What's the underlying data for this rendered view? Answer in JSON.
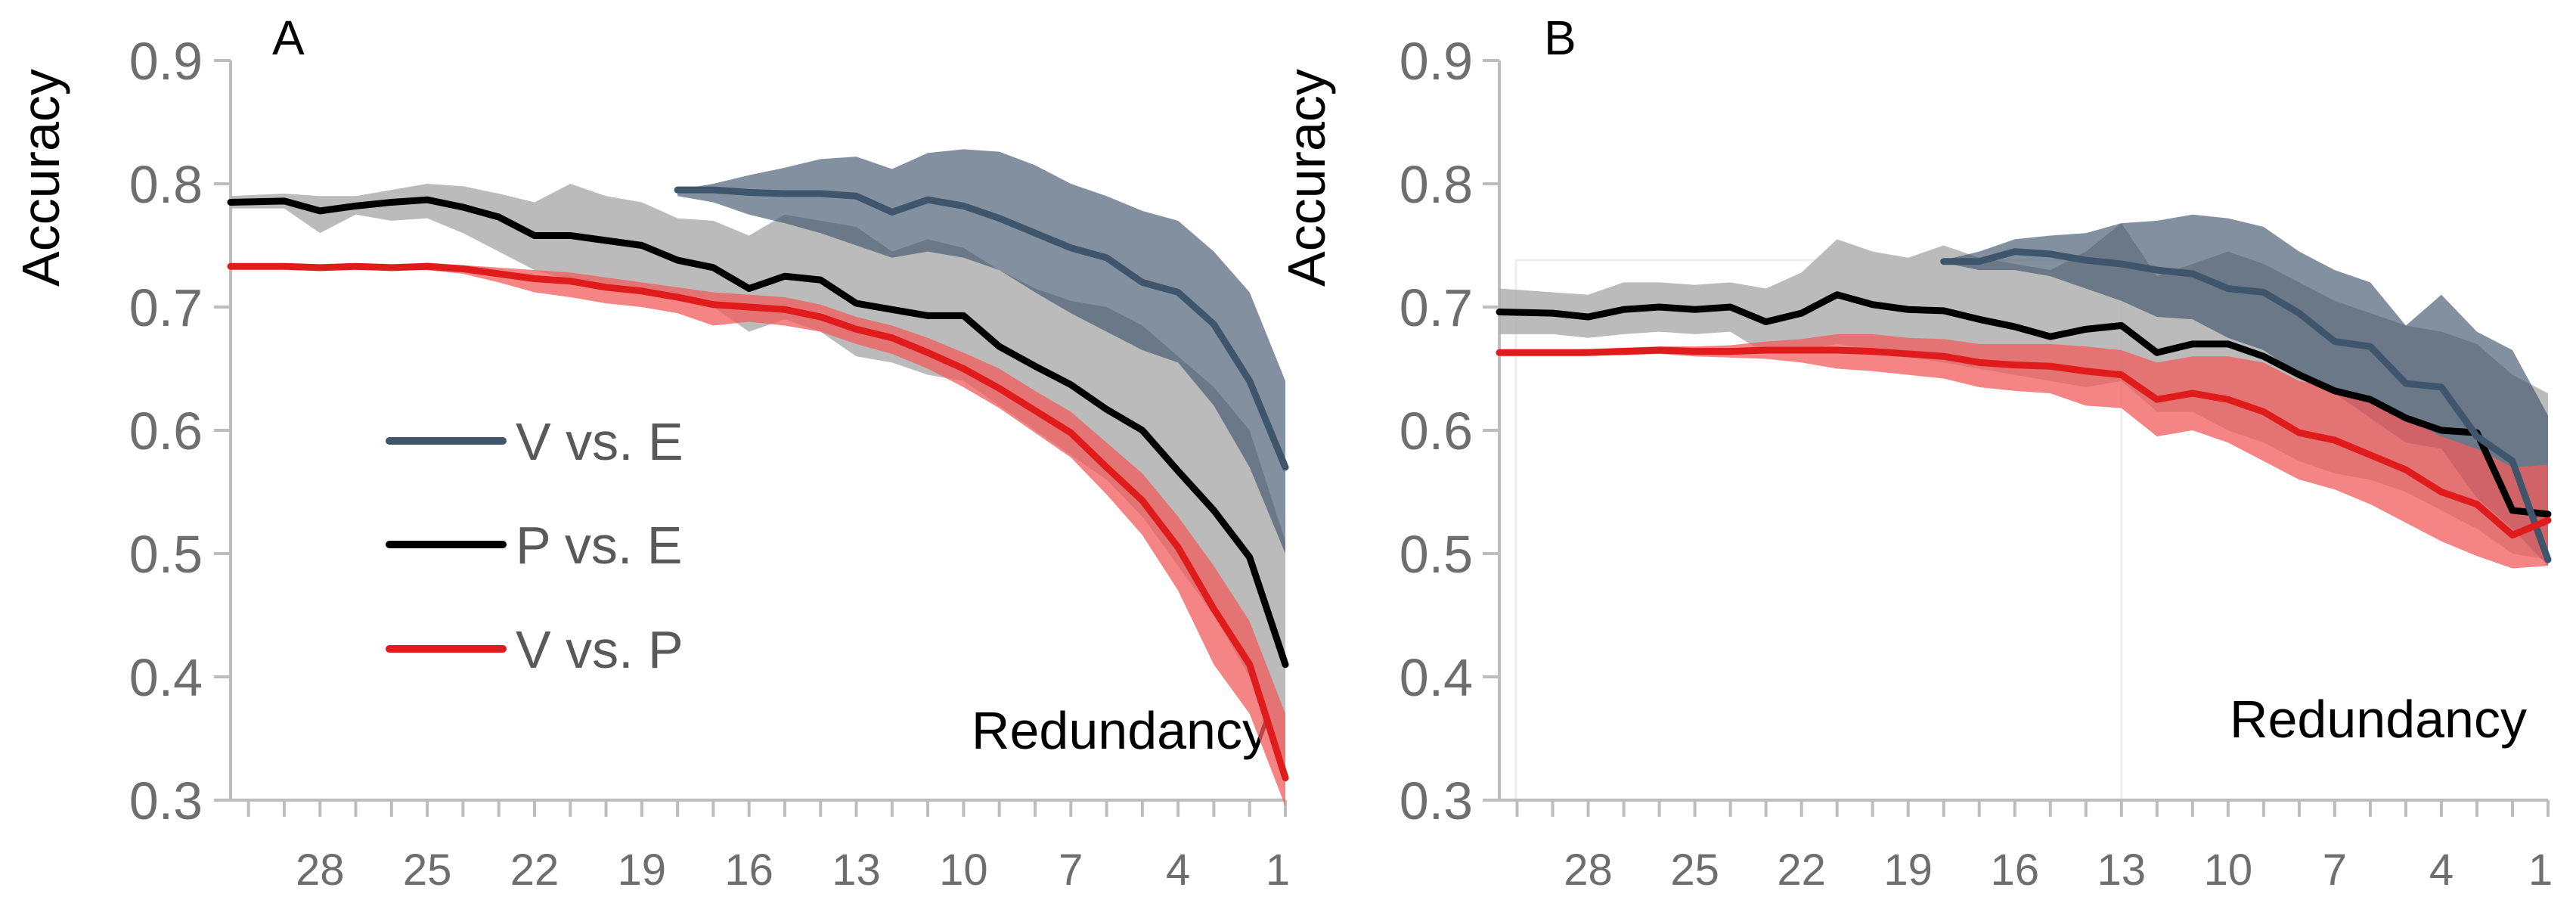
{
  "colors": {
    "V_vs_E": "#3F556B",
    "P_vs_E": "#000000",
    "V_vs_P": "#E01B1B",
    "grey_band": "#AFAFAF",
    "axis": "#BDBDBD"
  },
  "chart_data": [
    {
      "panel": "A",
      "type": "line",
      "title": "",
      "ylabel": "Accuracy",
      "xlabel": "Redundancy",
      "ylim": [
        0.3,
        0.9
      ],
      "yticks": [
        "0.9",
        "0.8",
        "0.7",
        "0.6",
        "0.5",
        "0.4",
        "0.3"
      ],
      "xreversed": true,
      "xlim": [
        30.5,
        1
      ],
      "xticks": [
        "28",
        "25",
        "22",
        "19",
        "16",
        "13",
        "10",
        "7",
        "4",
        "1"
      ],
      "legend": [
        "V vs. E",
        "P vs. E",
        "V vs. P"
      ],
      "legend_position": "middle-left",
      "series": [
        {
          "name": "V vs. E",
          "x": [
            18,
            17,
            16,
            15,
            14,
            13,
            12,
            11,
            10,
            9,
            8,
            7,
            6,
            5,
            4,
            3,
            2,
            1
          ],
          "values": [
            0.795,
            0.795,
            0.793,
            0.792,
            0.792,
            0.79,
            0.777,
            0.787,
            0.782,
            0.772,
            0.76,
            0.748,
            0.74,
            0.72,
            0.712,
            0.686,
            0.64,
            0.57
          ],
          "band_upper": [
            0.795,
            0.8,
            0.807,
            0.813,
            0.82,
            0.822,
            0.812,
            0.825,
            0.828,
            0.826,
            0.815,
            0.8,
            0.79,
            0.778,
            0.77,
            0.745,
            0.712,
            0.64
          ],
          "band_lower": [
            0.79,
            0.785,
            0.775,
            0.768,
            0.76,
            0.75,
            0.74,
            0.745,
            0.74,
            0.73,
            0.712,
            0.695,
            0.68,
            0.665,
            0.655,
            0.62,
            0.57,
            0.5
          ]
        },
        {
          "name": "P vs. E",
          "x": [
            30.5,
            29,
            28,
            27,
            26,
            25,
            24,
            23,
            22,
            21,
            20,
            19,
            18,
            17,
            16,
            15,
            14,
            13,
            12,
            11,
            10,
            9,
            8,
            7,
            6,
            5,
            4,
            3,
            2,
            1
          ],
          "values": [
            0.785,
            0.786,
            0.778,
            0.782,
            0.785,
            0.787,
            0.781,
            0.773,
            0.758,
            0.758,
            0.754,
            0.75,
            0.738,
            0.732,
            0.715,
            0.725,
            0.722,
            0.703,
            0.698,
            0.693,
            0.693,
            0.668,
            0.652,
            0.637,
            0.617,
            0.6,
            0.567,
            0.535,
            0.497,
            0.41
          ],
          "band_upper": [
            0.79,
            0.792,
            0.79,
            0.79,
            0.795,
            0.8,
            0.798,
            0.792,
            0.785,
            0.8,
            0.79,
            0.785,
            0.772,
            0.77,
            0.758,
            0.775,
            0.77,
            0.765,
            0.745,
            0.755,
            0.748,
            0.73,
            0.715,
            0.705,
            0.7,
            0.685,
            0.66,
            0.635,
            0.6,
            0.51
          ],
          "band_lower": [
            0.78,
            0.78,
            0.76,
            0.775,
            0.77,
            0.772,
            0.76,
            0.745,
            0.73,
            0.722,
            0.715,
            0.71,
            0.705,
            0.7,
            0.68,
            0.69,
            0.68,
            0.66,
            0.655,
            0.645,
            0.64,
            0.62,
            0.6,
            0.58,
            0.56,
            0.53,
            0.49,
            0.45,
            0.4,
            0.33
          ]
        },
        {
          "name": "V vs. P",
          "x": [
            30.5,
            29,
            28,
            27,
            26,
            25,
            24,
            23,
            22,
            21,
            20,
            19,
            18,
            17,
            16,
            15,
            14,
            13,
            12,
            11,
            10,
            9,
            8,
            7,
            6,
            5,
            4,
            3,
            2,
            1
          ],
          "values": [
            0.733,
            0.733,
            0.732,
            0.733,
            0.732,
            0.733,
            0.731,
            0.727,
            0.723,
            0.721,
            0.716,
            0.713,
            0.708,
            0.702,
            0.7,
            0.698,
            0.692,
            0.682,
            0.675,
            0.663,
            0.65,
            0.634,
            0.616,
            0.598,
            0.57,
            0.543,
            0.505,
            0.455,
            0.41,
            0.318
          ],
          "band_upper": [
            0.734,
            0.734,
            0.733,
            0.734,
            0.734,
            0.736,
            0.734,
            0.732,
            0.73,
            0.728,
            0.724,
            0.72,
            0.716,
            0.712,
            0.71,
            0.708,
            0.702,
            0.692,
            0.685,
            0.675,
            0.663,
            0.65,
            0.632,
            0.615,
            0.59,
            0.565,
            0.53,
            0.49,
            0.445,
            0.37
          ],
          "band_lower": [
            0.732,
            0.732,
            0.731,
            0.732,
            0.731,
            0.73,
            0.727,
            0.72,
            0.712,
            0.708,
            0.703,
            0.7,
            0.695,
            0.685,
            0.688,
            0.685,
            0.68,
            0.67,
            0.662,
            0.65,
            0.635,
            0.618,
            0.598,
            0.578,
            0.548,
            0.515,
            0.47,
            0.41,
            0.37,
            0.295
          ]
        }
      ]
    },
    {
      "panel": "B",
      "type": "line",
      "title": "",
      "ylabel": "Accuracy",
      "xlabel": "Redundancy",
      "ylim": [
        0.3,
        0.9
      ],
      "yticks": [
        "0.9",
        "0.8",
        "0.7",
        "0.6",
        "0.5",
        "0.4",
        "0.3"
      ],
      "xreversed": true,
      "xlim": [
        30.5,
        1
      ],
      "xticks": [
        "28",
        "25",
        "22",
        "19",
        "16",
        "13",
        "10",
        "7",
        "4",
        "1"
      ],
      "series": [
        {
          "name": "V vs. E",
          "x": [
            18,
            17,
            16,
            15,
            14,
            13,
            12,
            11,
            10,
            9,
            8,
            7,
            6,
            5,
            4,
            3,
            2,
            1
          ],
          "values": [
            0.737,
            0.737,
            0.745,
            0.743,
            0.738,
            0.735,
            0.73,
            0.727,
            0.715,
            0.712,
            0.695,
            0.672,
            0.668,
            0.638,
            0.635,
            0.595,
            0.575,
            0.495
          ],
          "band_upper": [
            0.738,
            0.745,
            0.755,
            0.758,
            0.76,
            0.768,
            0.77,
            0.775,
            0.772,
            0.765,
            0.745,
            0.73,
            0.72,
            0.685,
            0.71,
            0.68,
            0.665,
            0.612
          ],
          "band_lower": [
            0.736,
            0.73,
            0.73,
            0.725,
            0.715,
            0.705,
            0.692,
            0.69,
            0.675,
            0.665,
            0.645,
            0.63,
            0.61,
            0.59,
            0.585,
            0.545,
            0.52,
            0.49
          ]
        },
        {
          "name": "P vs. E",
          "x": [
            30.5,
            29,
            28,
            27,
            26,
            25,
            24,
            23,
            22,
            21,
            20,
            19,
            18,
            17,
            16,
            15,
            14,
            13,
            12,
            11,
            10,
            9,
            8,
            7,
            6,
            5,
            4,
            3,
            2,
            1
          ],
          "values": [
            0.696,
            0.695,
            0.692,
            0.698,
            0.7,
            0.698,
            0.7,
            0.688,
            0.695,
            0.71,
            0.702,
            0.698,
            0.697,
            0.69,
            0.684,
            0.676,
            0.682,
            0.685,
            0.663,
            0.67,
            0.67,
            0.66,
            0.645,
            0.632,
            0.625,
            0.61,
            0.6,
            0.598,
            0.535,
            0.532
          ],
          "band_upper": [
            0.715,
            0.712,
            0.71,
            0.72,
            0.72,
            0.718,
            0.72,
            0.715,
            0.728,
            0.755,
            0.745,
            0.74,
            0.75,
            0.74,
            0.735,
            0.73,
            0.745,
            0.768,
            0.725,
            0.735,
            0.745,
            0.735,
            0.72,
            0.705,
            0.695,
            0.685,
            0.68,
            0.67,
            0.645,
            0.63
          ],
          "band_lower": [
            0.678,
            0.678,
            0.675,
            0.678,
            0.68,
            0.678,
            0.68,
            0.662,
            0.665,
            0.67,
            0.665,
            0.66,
            0.655,
            0.65,
            0.645,
            0.64,
            0.635,
            0.64,
            0.615,
            0.615,
            0.6,
            0.59,
            0.575,
            0.565,
            0.56,
            0.55,
            0.535,
            0.52,
            0.5,
            0.495
          ]
        },
        {
          "name": "V vs. P",
          "x": [
            30.5,
            29,
            28,
            27,
            26,
            25,
            24,
            23,
            22,
            21,
            20,
            19,
            18,
            17,
            16,
            15,
            14,
            13,
            12,
            11,
            10,
            9,
            8,
            7,
            6,
            5,
            4,
            3,
            2,
            1
          ],
          "values": [
            0.663,
            0.663,
            0.663,
            0.664,
            0.665,
            0.664,
            0.664,
            0.665,
            0.665,
            0.665,
            0.664,
            0.662,
            0.66,
            0.655,
            0.653,
            0.652,
            0.648,
            0.645,
            0.625,
            0.63,
            0.625,
            0.615,
            0.598,
            0.592,
            0.58,
            0.568,
            0.55,
            0.54,
            0.515,
            0.527
          ],
          "band_upper": [
            0.665,
            0.665,
            0.666,
            0.667,
            0.668,
            0.668,
            0.669,
            0.672,
            0.674,
            0.678,
            0.678,
            0.675,
            0.674,
            0.67,
            0.67,
            0.67,
            0.668,
            0.665,
            0.655,
            0.66,
            0.66,
            0.655,
            0.64,
            0.635,
            0.625,
            0.61,
            0.595,
            0.585,
            0.57,
            0.572
          ],
          "band_lower": [
            0.661,
            0.661,
            0.661,
            0.661,
            0.662,
            0.66,
            0.659,
            0.658,
            0.655,
            0.65,
            0.648,
            0.645,
            0.642,
            0.635,
            0.632,
            0.63,
            0.62,
            0.618,
            0.595,
            0.6,
            0.59,
            0.575,
            0.56,
            0.552,
            0.54,
            0.525,
            0.51,
            0.498,
            0.488,
            0.49
          ]
        }
      ]
    }
  ]
}
